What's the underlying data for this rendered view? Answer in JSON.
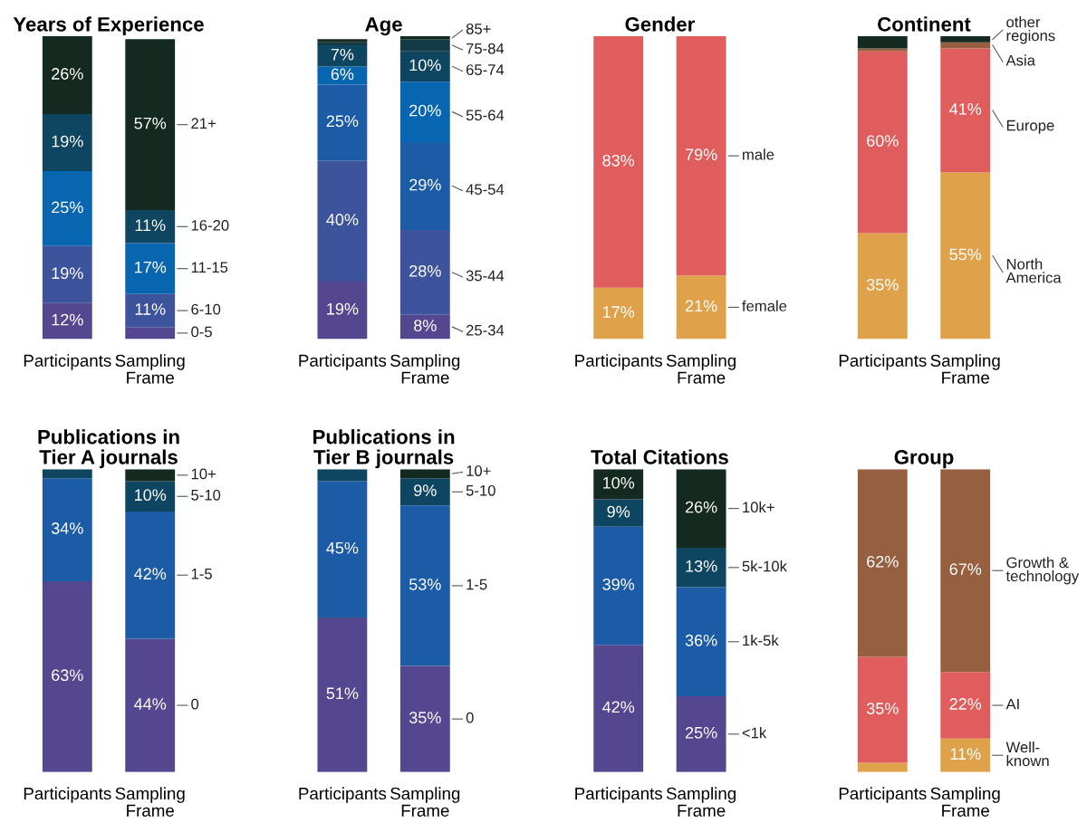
{
  "chart_data": [
    {
      "type": "bar",
      "stacked": true,
      "title": "Years of Experience",
      "categories": [
        "Participants",
        "Sampling\nFrame"
      ],
      "series": [
        {
          "name": "0-5",
          "color": "#54478f",
          "values": [
            12,
            4
          ],
          "value_labels": [
            "12%",
            null
          ]
        },
        {
          "name": "6-10",
          "color": "#3d539c",
          "values": [
            19,
            11
          ],
          "value_labels": [
            "19%",
            "11%"
          ]
        },
        {
          "name": "11-15",
          "color": "#0866b0",
          "values": [
            25,
            17
          ],
          "value_labels": [
            "25%",
            "17%"
          ]
        },
        {
          "name": "16-20",
          "color": "#0e4560",
          "values": [
            19,
            11
          ],
          "value_labels": [
            "19%",
            "11%"
          ]
        },
        {
          "name": "21+",
          "color": "#14291f",
          "values": [
            26,
            57
          ],
          "value_labels": [
            "26%",
            "57%"
          ]
        }
      ]
    },
    {
      "type": "bar",
      "stacked": true,
      "title": "Age",
      "categories": [
        "Participants",
        "Sampling\nFrame"
      ],
      "series": [
        {
          "name": "25-34",
          "color": "#54478f",
          "values": [
            19,
            8
          ],
          "value_labels": [
            "19%",
            "8%"
          ]
        },
        {
          "name": "35-44",
          "color": "#3d539c",
          "values": [
            40,
            28
          ],
          "value_labels": [
            "40%",
            "28%"
          ]
        },
        {
          "name": "45-54",
          "color": "#1c5ba6",
          "values": [
            25,
            29
          ],
          "value_labels": [
            "25%",
            "29%"
          ]
        },
        {
          "name": "55-64",
          "color": "#0866b0",
          "values": [
            6,
            20
          ],
          "value_labels": [
            "6%",
            "20%"
          ]
        },
        {
          "name": "65-74",
          "color": "#0e4560",
          "values": [
            7,
            10
          ],
          "value_labels": [
            "7%",
            "10%"
          ]
        },
        {
          "name": "75-84",
          "color": "#133a45",
          "values": [
            1,
            4
          ],
          "value_labels": [
            null,
            null
          ]
        },
        {
          "name": "85+",
          "color": "#14291f",
          "values": [
            1,
            1
          ],
          "value_labels": [
            null,
            null
          ]
        }
      ]
    },
    {
      "type": "bar",
      "stacked": true,
      "title": "Gender",
      "categories": [
        "Participants",
        "Sampling\nFrame"
      ],
      "series": [
        {
          "name": "female",
          "color": "#dfa24b",
          "values": [
            17,
            21
          ],
          "value_labels": [
            "17%",
            "21%"
          ]
        },
        {
          "name": "male",
          "color": "#e05d5d",
          "values": [
            83,
            79
          ],
          "value_labels": [
            "83%",
            "79%"
          ]
        }
      ]
    },
    {
      "type": "bar",
      "stacked": true,
      "title": "Continent",
      "categories": [
        "Participants",
        "Sampling\nFrame"
      ],
      "series": [
        {
          "name": "North\nAmerica",
          "color": "#dfa24b",
          "values": [
            35,
            55
          ],
          "value_labels": [
            "35%",
            "55%"
          ]
        },
        {
          "name": "Europe",
          "color": "#e05d5d",
          "values": [
            60,
            41
          ],
          "value_labels": [
            "60%",
            "41%"
          ]
        },
        {
          "name": "Asia",
          "color": "#955f40",
          "values": [
            1,
            2
          ],
          "value_labels": [
            null,
            null
          ]
        },
        {
          "name": "other\nregions",
          "color": "#14291f",
          "values": [
            4,
            2
          ],
          "value_labels": [
            null,
            null
          ]
        }
      ]
    },
    {
      "type": "bar",
      "stacked": true,
      "title": "Publications in\nTier A journals",
      "categories": [
        "Participants",
        "Sampling\nFrame"
      ],
      "series": [
        {
          "name": "0",
          "color": "#54478f",
          "values": [
            63,
            44
          ],
          "value_labels": [
            "63%",
            "44%"
          ]
        },
        {
          "name": "1-5",
          "color": "#1c5ba6",
          "values": [
            34,
            42
          ],
          "value_labels": [
            "34%",
            "42%"
          ]
        },
        {
          "name": "5-10",
          "color": "#0e4560",
          "values": [
            3,
            10
          ],
          "value_labels": [
            null,
            "10%"
          ]
        },
        {
          "name": "10+",
          "color": "#14291f",
          "values": [
            0,
            4
          ],
          "value_labels": [
            null,
            null
          ]
        }
      ]
    },
    {
      "type": "bar",
      "stacked": true,
      "title": "Publications in\nTier B journals",
      "categories": [
        "Participants",
        "Sampling\nFrame"
      ],
      "series": [
        {
          "name": "0",
          "color": "#54478f",
          "values": [
            51,
            35
          ],
          "value_labels": [
            "51%",
            "35%"
          ]
        },
        {
          "name": "1-5",
          "color": "#1c5ba6",
          "values": [
            45,
            53
          ],
          "value_labels": [
            "45%",
            "53%"
          ]
        },
        {
          "name": "5-10",
          "color": "#0e4560",
          "values": [
            4,
            9
          ],
          "value_labels": [
            null,
            "9%"
          ]
        },
        {
          "name": "10+",
          "color": "#14291f",
          "values": [
            0,
            3
          ],
          "value_labels": [
            null,
            null
          ]
        }
      ]
    },
    {
      "type": "bar",
      "stacked": true,
      "title": "Total Citations",
      "categories": [
        "Participants",
        "Sampling\nFrame"
      ],
      "series": [
        {
          "name": "<1k",
          "color": "#54478f",
          "values": [
            42,
            25
          ],
          "value_labels": [
            "42%",
            "25%"
          ]
        },
        {
          "name": "1k-5k",
          "color": "#1c5ba6",
          "values": [
            39,
            36
          ],
          "value_labels": [
            "39%",
            "36%"
          ]
        },
        {
          "name": "5k-10k",
          "color": "#0e4560",
          "values": [
            9,
            13
          ],
          "value_labels": [
            "9%",
            "13%"
          ]
        },
        {
          "name": "10k+",
          "color": "#14291f",
          "values": [
            10,
            26
          ],
          "value_labels": [
            "10%",
            "26%"
          ]
        }
      ]
    },
    {
      "type": "bar",
      "stacked": true,
      "title": "Group",
      "categories": [
        "Participants",
        "Sampling\nFrame"
      ],
      "series": [
        {
          "name": "Well-\nknown",
          "color": "#dfa24b",
          "values": [
            3,
            11
          ],
          "value_labels": [
            null,
            "11%"
          ]
        },
        {
          "name": "AI",
          "color": "#e05d5d",
          "values": [
            35,
            22
          ],
          "value_labels": [
            "35%",
            "22%"
          ]
        },
        {
          "name": "Growth &\ntechnology",
          "color": "#955f40",
          "values": [
            62,
            67
          ],
          "value_labels": [
            "62%",
            "67%"
          ]
        }
      ]
    }
  ]
}
